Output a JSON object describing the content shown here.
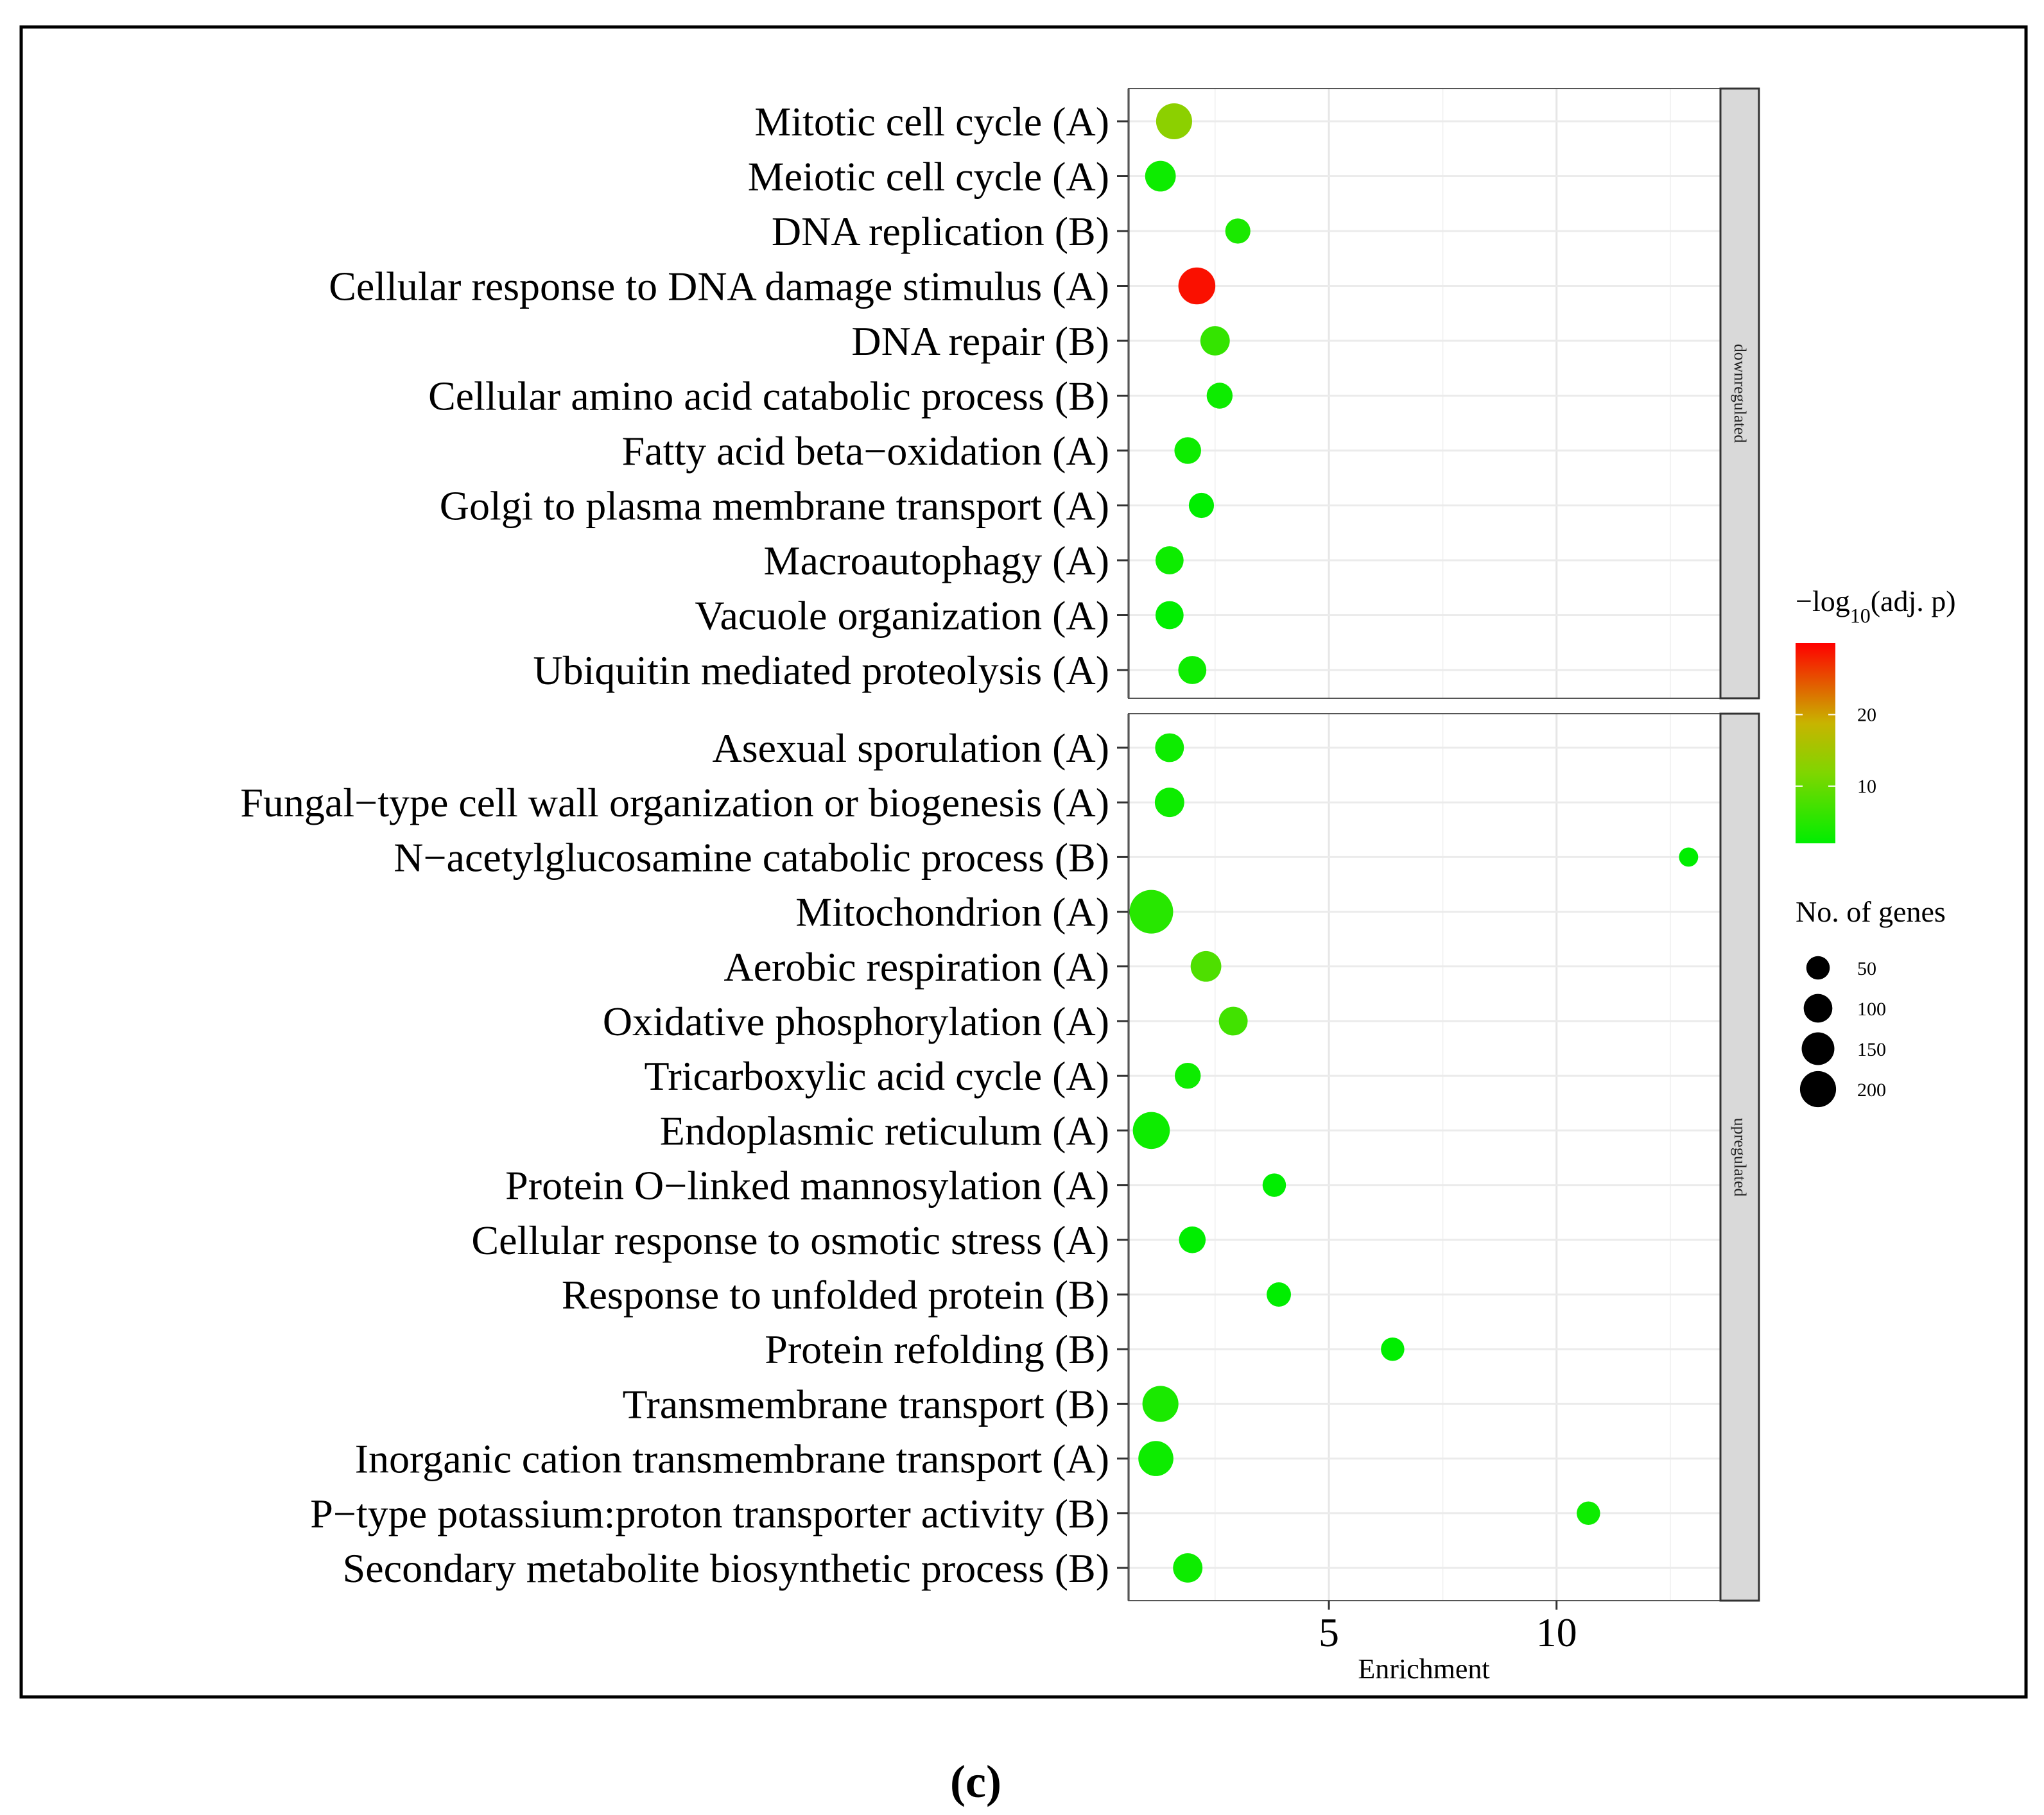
{
  "chart_data": {
    "type": "scatter",
    "xlabel": "Enrichment",
    "x_ticks": [
      5,
      10
    ],
    "xlim": [
      0.6,
      13.6
    ],
    "facets": [
      {
        "name": "downregulated",
        "categories": [
          {
            "label": "Mitotic cell cycle (A)",
            "enrichment": 1.6,
            "neg_log10_adj_p": 13,
            "genes": 140
          },
          {
            "label": "Meiotic cell cycle (A)",
            "enrichment": 1.3,
            "neg_log10_adj_p": 3,
            "genes": 90
          },
          {
            "label": "DNA replication (B)",
            "enrichment": 3.0,
            "neg_log10_adj_p": 4,
            "genes": 50
          },
          {
            "label": "Cellular response to DNA damage stimulus (A)",
            "enrichment": 2.1,
            "neg_log10_adj_p": 29,
            "genes": 150
          },
          {
            "label": "DNA repair (B)",
            "enrichment": 2.5,
            "neg_log10_adj_p": 6,
            "genes": 80
          },
          {
            "label": "Cellular amino acid catabolic process (B)",
            "enrichment": 2.6,
            "neg_log10_adj_p": 3,
            "genes": 55
          },
          {
            "label": "Fatty acid beta−oxidation (A)",
            "enrichment": 1.9,
            "neg_log10_adj_p": 3,
            "genes": 60
          },
          {
            "label": "Golgi to plasma membrane transport (A)",
            "enrichment": 2.2,
            "neg_log10_adj_p": 2,
            "genes": 50
          },
          {
            "label": "Macroautophagy (A)",
            "enrichment": 1.5,
            "neg_log10_adj_p": 3,
            "genes": 70
          },
          {
            "label": "Vacuole organization (A)",
            "enrichment": 1.5,
            "neg_log10_adj_p": 2,
            "genes": 70
          },
          {
            "label": "Ubiquitin mediated proteolysis (A)",
            "enrichment": 2.0,
            "neg_log10_adj_p": 3,
            "genes": 70
          }
        ]
      },
      {
        "name": "upregulated",
        "categories": [
          {
            "label": "Asexual sporulation (A)",
            "enrichment": 1.5,
            "neg_log10_adj_p": 3,
            "genes": 75
          },
          {
            "label": "Fungal−type cell wall organization or biogenesis (A)",
            "enrichment": 1.5,
            "neg_log10_adj_p": 3,
            "genes": 80
          },
          {
            "label": "N−acetylglucosamine catabolic process (B)",
            "enrichment": 12.9,
            "neg_log10_adj_p": 2,
            "genes": 20
          },
          {
            "label": "Mitochondrion (A)",
            "enrichment": 1.1,
            "neg_log10_adj_p": 5,
            "genes": 230
          },
          {
            "label": "Aerobic respiration (A)",
            "enrichment": 2.3,
            "neg_log10_adj_p": 8,
            "genes": 90
          },
          {
            "label": "Oxidative phosphorylation (A)",
            "enrichment": 2.9,
            "neg_log10_adj_p": 7,
            "genes": 75
          },
          {
            "label": "Tricarboxylic acid cycle (A)",
            "enrichment": 1.9,
            "neg_log10_adj_p": 3,
            "genes": 55
          },
          {
            "label": "Endoplasmic reticulum (A)",
            "enrichment": 1.1,
            "neg_log10_adj_p": 3,
            "genes": 150
          },
          {
            "label": "Protein O−linked mannosylation (A)",
            "enrichment": 3.8,
            "neg_log10_adj_p": 2,
            "genes": 40
          },
          {
            "label": "Cellular response to osmotic stress (A)",
            "enrichment": 2.0,
            "neg_log10_adj_p": 2,
            "genes": 60
          },
          {
            "label": "Response to unfolded protein (B)",
            "enrichment": 3.9,
            "neg_log10_adj_p": 2,
            "genes": 45
          },
          {
            "label": "Protein refolding (B)",
            "enrichment": 6.4,
            "neg_log10_adj_p": 2,
            "genes": 40
          },
          {
            "label": "Transmembrane transport (B)",
            "enrichment": 1.3,
            "neg_log10_adj_p": 4,
            "genes": 140
          },
          {
            "label": "Inorganic cation transmembrane transport (A)",
            "enrichment": 1.2,
            "neg_log10_adj_p": 3,
            "genes": 130
          },
          {
            "label": "P−type potassium:proton transporter activity (B)",
            "enrichment": 10.7,
            "neg_log10_adj_p": 3,
            "genes": 40
          },
          {
            "label": "Secondary metabolite biosynthetic process (B)",
            "enrichment": 1.9,
            "neg_log10_adj_p": 3,
            "genes": 80
          }
        ]
      }
    ],
    "color_legend": {
      "title_prefix": "−log",
      "title_sub": "10",
      "title_suffix": "(adj. p)",
      "ticks": [
        10,
        20
      ],
      "range": [
        2,
        30
      ],
      "colors": [
        "#00ee00",
        "#ff0000"
      ]
    },
    "size_legend": {
      "title": "No. of genes",
      "values": [
        50,
        100,
        150,
        200
      ]
    },
    "grid": true
  },
  "caption": "(c)"
}
